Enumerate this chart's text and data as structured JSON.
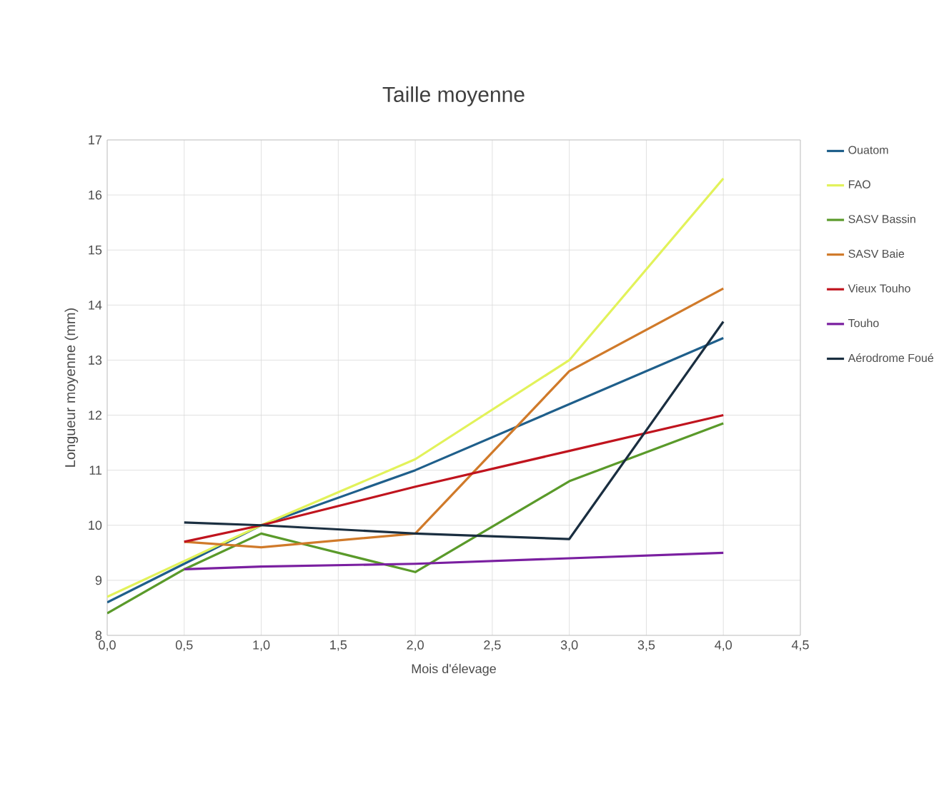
{
  "chart_data": {
    "type": "line",
    "title": "Taille moyenne",
    "xlabel": "Mois d'élevage",
    "ylabel": "Longueur moyenne  (mm)",
    "xlim": [
      0,
      4.5
    ],
    "ylim": [
      8,
      17
    ],
    "xticks": [
      {
        "value": 0,
        "label": "0,0"
      },
      {
        "value": 0.5,
        "label": "0,5"
      },
      {
        "value": 1,
        "label": "1,0"
      },
      {
        "value": 1.5,
        "label": "1,5"
      },
      {
        "value": 2,
        "label": "2,0"
      },
      {
        "value": 2.5,
        "label": "2,5"
      },
      {
        "value": 3,
        "label": "3,0"
      },
      {
        "value": 3.5,
        "label": "3,5"
      },
      {
        "value": 4,
        "label": "4,0"
      },
      {
        "value": 4.5,
        "label": "4,5"
      }
    ],
    "yticks": [
      8,
      9,
      10,
      11,
      12,
      13,
      14,
      15,
      16,
      17
    ],
    "grid": true,
    "legend": "right",
    "series": [
      {
        "name": "Ouatom",
        "color": "#1f5f8b",
        "x": [
          0,
          1,
          2,
          3,
          4
        ],
        "values": [
          8.6,
          10.0,
          11.0,
          12.2,
          13.4
        ]
      },
      {
        "name": "FAO",
        "color": "#e2f25a",
        "x": [
          0,
          1,
          2,
          3,
          4
        ],
        "values": [
          8.7,
          10.0,
          11.2,
          13.0,
          16.3
        ]
      },
      {
        "name": "SASV Bassin",
        "color": "#5a9a2a",
        "x": [
          0,
          0.5,
          1,
          2,
          3,
          4
        ],
        "values": [
          8.4,
          9.2,
          9.85,
          9.15,
          10.8,
          11.85
        ]
      },
      {
        "name": "SASV Baie",
        "color": "#d07a2a",
        "x": [
          0.5,
          1,
          2,
          3,
          4
        ],
        "values": [
          9.7,
          9.6,
          9.85,
          12.8,
          14.3
        ]
      },
      {
        "name": "Vieux Touho",
        "color": "#c0141e",
        "x": [
          0.5,
          1,
          2,
          3,
          4
        ],
        "values": [
          9.7,
          10.0,
          10.7,
          11.35,
          12.0
        ]
      },
      {
        "name": "Touho",
        "color": "#7a1fa0",
        "x": [
          0.5,
          1,
          2,
          3,
          4
        ],
        "values": [
          9.2,
          9.25,
          9.3,
          9.4,
          9.5
        ]
      },
      {
        "name": "Aérodrome Foué",
        "color": "#1a2e40",
        "x": [
          0.5,
          1,
          2,
          3,
          4
        ],
        "values": [
          10.05,
          10.0,
          9.85,
          9.75,
          13.7
        ]
      }
    ]
  }
}
